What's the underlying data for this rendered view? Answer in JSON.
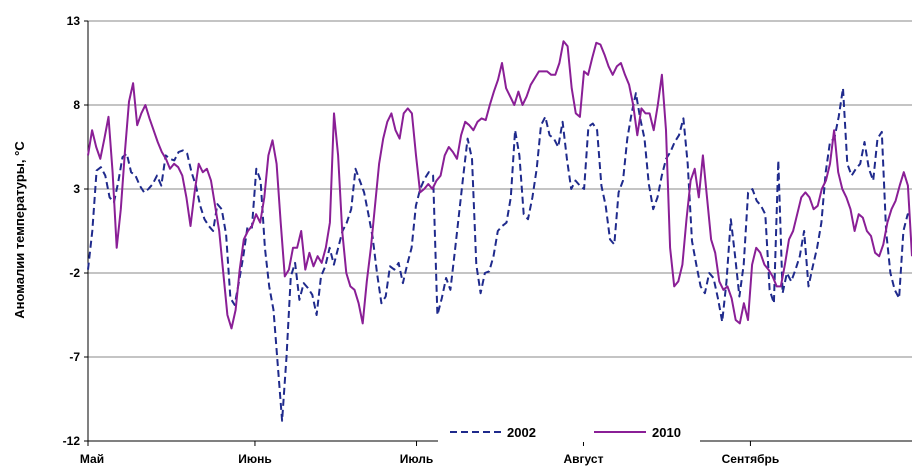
{
  "chart_data": {
    "type": "line",
    "ylabel": "Аномалии температуры, °C",
    "xlabel": "",
    "ylim": [
      -12,
      13
    ],
    "y_ticks": [
      13,
      8,
      3,
      -2,
      -7,
      -12
    ],
    "grid": true,
    "legend_position": "bottom-right",
    "x_days": 153,
    "x_ticks": [
      {
        "label": "Май",
        "day": 0
      },
      {
        "label": "Июнь",
        "day": 31
      },
      {
        "label": "Июль",
        "day": 61
      },
      {
        "label": "Август",
        "day": 92
      },
      {
        "label": "Сентябрь",
        "day": 123
      }
    ],
    "series": [
      {
        "name": "2002",
        "color": "#1f2a8c",
        "dash": "dashed",
        "values": [
          -1.8,
          0.5,
          4.1,
          4.3,
          3.8,
          2.5,
          2.2,
          3.4,
          4.9,
          5.1,
          4.0,
          3.8,
          3.2,
          2.8,
          3.0,
          3.3,
          3.8,
          3.2,
          5.0,
          4.8,
          4.7,
          5.2,
          5.3,
          5.1,
          4.0,
          3.2,
          2.0,
          1.2,
          0.8,
          0.5,
          2.1,
          1.8,
          0.3,
          -3.5,
          -3.9,
          -2.5,
          -1.0,
          0.8,
          0.7,
          4.2,
          3.5,
          -0.5,
          -2.8,
          -4.2,
          -7.5,
          -10.8,
          -7.0,
          -2.2,
          -1.4,
          -3.6,
          -2.6,
          -2.9,
          -3.3,
          -4.5,
          -2.2,
          -1.6,
          -0.5,
          -1.5,
          -0.5,
          0.5,
          1.0,
          1.8,
          4.2,
          3.5,
          2.8,
          1.5,
          0.1,
          -2.0,
          -3.8,
          -3.4,
          -1.6,
          -1.8,
          -1.4,
          -2.6,
          -1.5,
          -0.5,
          2.0,
          3.0,
          3.6,
          4.0,
          3.8,
          -4.5,
          -3.5,
          -2.3,
          -3.0,
          -0.8,
          1.5,
          3.8,
          6.0,
          4.8,
          -1.5,
          -3.2,
          -2.0,
          -1.9,
          -1.0,
          0.5,
          0.8,
          1.0,
          2.5,
          6.5,
          5.0,
          1.5,
          1.2,
          2.5,
          4.2,
          6.8,
          7.3,
          6.2,
          6.0,
          5.5,
          7.0,
          4.8,
          3.0,
          3.5,
          3.2,
          3.0,
          6.7,
          6.9,
          6.5,
          3.2,
          2.0,
          0.0,
          -0.3,
          2.8,
          3.5,
          6.0,
          7.5,
          8.7,
          7.2,
          6.0,
          3.3,
          1.8,
          2.5,
          3.8,
          4.8,
          5.2,
          5.8,
          6.2,
          7.2,
          4.5,
          -0.1,
          -1.5,
          -2.8,
          -3.2,
          -2.0,
          -2.3,
          -3.5,
          -4.9,
          -2.5,
          1.2,
          -1.0,
          -3.4,
          -1.5,
          2.8,
          3.0,
          2.3,
          2.0,
          1.5,
          -3.0,
          -3.8,
          4.7,
          -3.2,
          -2.0,
          -2.5,
          -1.8,
          -1.0,
          0.5,
          -2.8,
          -1.6,
          -0.5,
          1.0,
          4.0,
          5.8,
          6.0,
          7.3,
          9.0,
          4.5,
          3.8,
          4.2,
          4.5,
          5.8,
          4.2,
          3.5,
          6.0,
          6.4,
          0.5,
          -2.0,
          -3.0,
          -3.5,
          0.5,
          1.5,
          1.5
        ]
      },
      {
        "name": "2010",
        "color": "#8a1f96",
        "dash": "solid",
        "values": [
          5.0,
          6.5,
          5.5,
          4.8,
          6.0,
          7.3,
          4.0,
          -0.5,
          1.8,
          5.2,
          8.2,
          9.3,
          6.8,
          7.5,
          8.0,
          7.2,
          6.5,
          5.8,
          5.2,
          4.8,
          4.2,
          4.5,
          4.3,
          3.8,
          2.5,
          0.8,
          2.8,
          4.5,
          4.0,
          4.2,
          3.5,
          2.0,
          0.5,
          -2.0,
          -4.5,
          -5.3,
          -4.2,
          -1.8,
          0.0,
          0.5,
          0.8,
          1.5,
          1.0,
          2.5,
          5.0,
          5.9,
          4.5,
          1.0,
          -2.2,
          -1.8,
          -0.5,
          -0.5,
          0.5,
          -1.8,
          -0.8,
          -1.6,
          -1.0,
          -1.4,
          -0.5,
          1.0,
          7.5,
          5.0,
          0.5,
          -2.0,
          -2.8,
          -3.0,
          -3.8,
          -5.0,
          -2.5,
          -0.5,
          2.0,
          4.5,
          6.0,
          7.0,
          7.5,
          6.5,
          6.0,
          7.5,
          7.8,
          7.5,
          5.0,
          2.8,
          3.0,
          3.3,
          3.0,
          3.5,
          3.8,
          5.0,
          5.5,
          5.2,
          4.8,
          6.2,
          7.0,
          6.8,
          6.5,
          7.0,
          7.2,
          7.1,
          8.0,
          8.8,
          9.5,
          10.5,
          9.0,
          8.5,
          8.0,
          8.8,
          8.0,
          8.5,
          9.2,
          9.6,
          10.0,
          10.0,
          10.0,
          9.8,
          9.8,
          10.5,
          11.8,
          11.5,
          9.0,
          7.5,
          7.3,
          10.0,
          9.8,
          10.8,
          11.7,
          11.6,
          11.0,
          10.3,
          9.8,
          10.3,
          10.5,
          9.8,
          9.2,
          8.0,
          6.2,
          7.8,
          7.5,
          7.5,
          6.5,
          8.0,
          9.8,
          6.5,
          -0.5,
          -2.8,
          -2.5,
          -1.5,
          1.2,
          3.5,
          4.2,
          2.5,
          5.0,
          2.5,
          0.0,
          -0.8,
          -2.5,
          -3.0,
          -2.8,
          -3.5,
          -4.8,
          -5.0,
          -3.8,
          -4.8,
          -1.5,
          -0.5,
          -0.8,
          -1.5,
          -1.8,
          -2.2,
          -2.8,
          -2.8,
          -1.5,
          0.0,
          0.5,
          1.5,
          2.5,
          2.8,
          2.5,
          1.8,
          2.0,
          3.0,
          3.5,
          4.5,
          6.5,
          4.0,
          3.0,
          2.5,
          1.8,
          0.5,
          1.5,
          1.3,
          0.5,
          0.2,
          -0.8,
          -1.0,
          -0.3,
          1.0,
          1.8,
          2.3,
          3.2,
          4.0,
          3.2,
          -1.0
        ]
      }
    ]
  }
}
